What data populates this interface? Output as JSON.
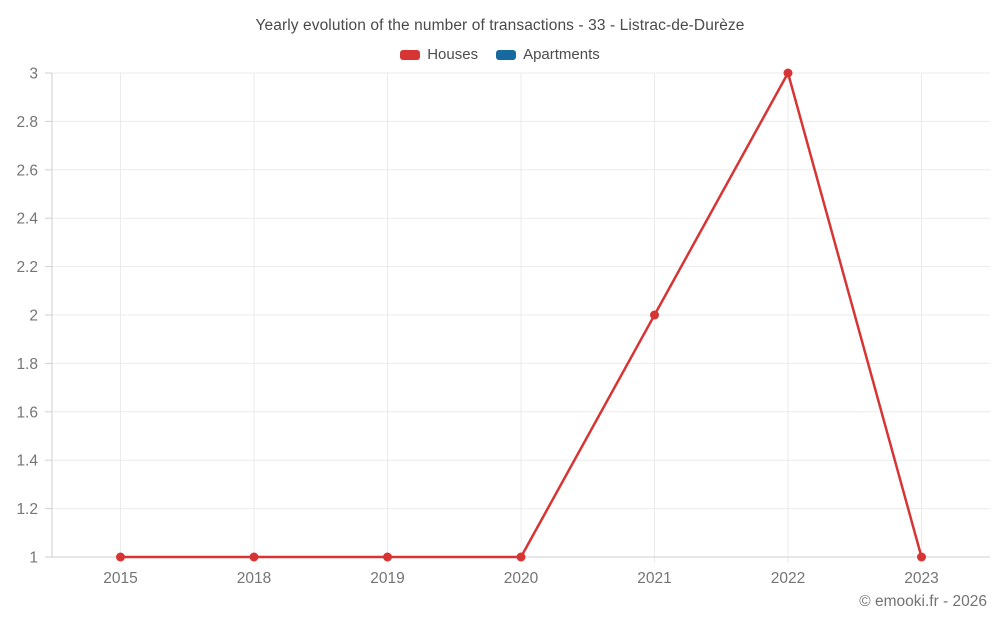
{
  "header": {
    "title": "Yearly evolution of the number of transactions - 33 - Listrac-de-Durèze"
  },
  "legend": {
    "items": [
      {
        "label": "Houses",
        "color": "#d73434"
      },
      {
        "label": "Apartments",
        "color": "#176a9f"
      }
    ]
  },
  "footer": {
    "copyright": "© emooki.fr - 2026"
  },
  "colors": {
    "grid": "#ebebeb",
    "axis": "#cfcfcf",
    "tick_label": "#757575",
    "title_text": "#4a4a4a",
    "houses_red": "#d73434",
    "apartments_blue": "#176a9f",
    "background": "#ffffff"
  },
  "chart_data": {
    "type": "line",
    "title": "Yearly evolution of the number of transactions - 33 - Listrac-de-Durèze",
    "categories": [
      "2015",
      "2018",
      "2019",
      "2020",
      "2021",
      "2022",
      "2023"
    ],
    "series": [
      {
        "name": "Houses",
        "color": "#d73434",
        "values": [
          1,
          1,
          1,
          1,
          2,
          3,
          1
        ]
      },
      {
        "name": "Apartments",
        "color": "#176a9f",
        "values": []
      }
    ],
    "xlabel": "",
    "ylabel": "",
    "ylim": [
      1,
      3
    ],
    "ytick_step": 0.2,
    "ytick_labels": [
      "1",
      "1.2",
      "1.4",
      "1.6",
      "1.8",
      "2",
      "2.2",
      "2.4",
      "2.6",
      "2.8",
      "3"
    ],
    "grid": true,
    "legend_position": "top",
    "marker": "circle"
  }
}
